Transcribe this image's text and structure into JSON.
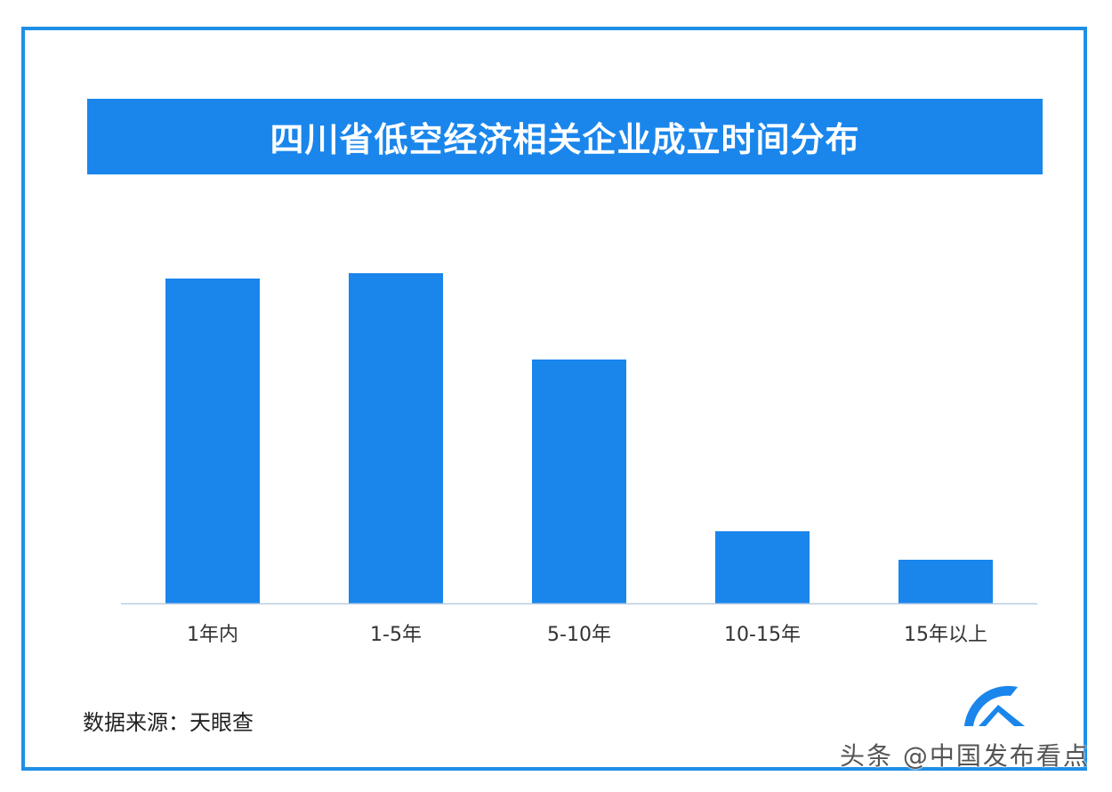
{
  "chart_data": {
    "type": "bar",
    "title": "四川省低空经济相关企业成立时间分布",
    "categories": [
      "1年内",
      "1-5年",
      "5-10年",
      "10-15年",
      "15年以上"
    ],
    "values": [
      36.5,
      37.1,
      27.4,
      8.1,
      4.9
    ],
    "ylim": [
      0,
      45
    ],
    "grid": false,
    "xlabel": "",
    "ylabel": "",
    "bar_color": "#1a86ec"
  },
  "source": "数据来源：天眼查",
  "watermark": "头条 @中国发布看点",
  "logo": {
    "icon": "tianyancha-logo-icon",
    "color": "#1a86ec"
  },
  "colors": {
    "frame": "#1e8fe6",
    "title_band": "#1a86ec",
    "title_text": "#ffffff",
    "baseline": "#b7cde3"
  }
}
